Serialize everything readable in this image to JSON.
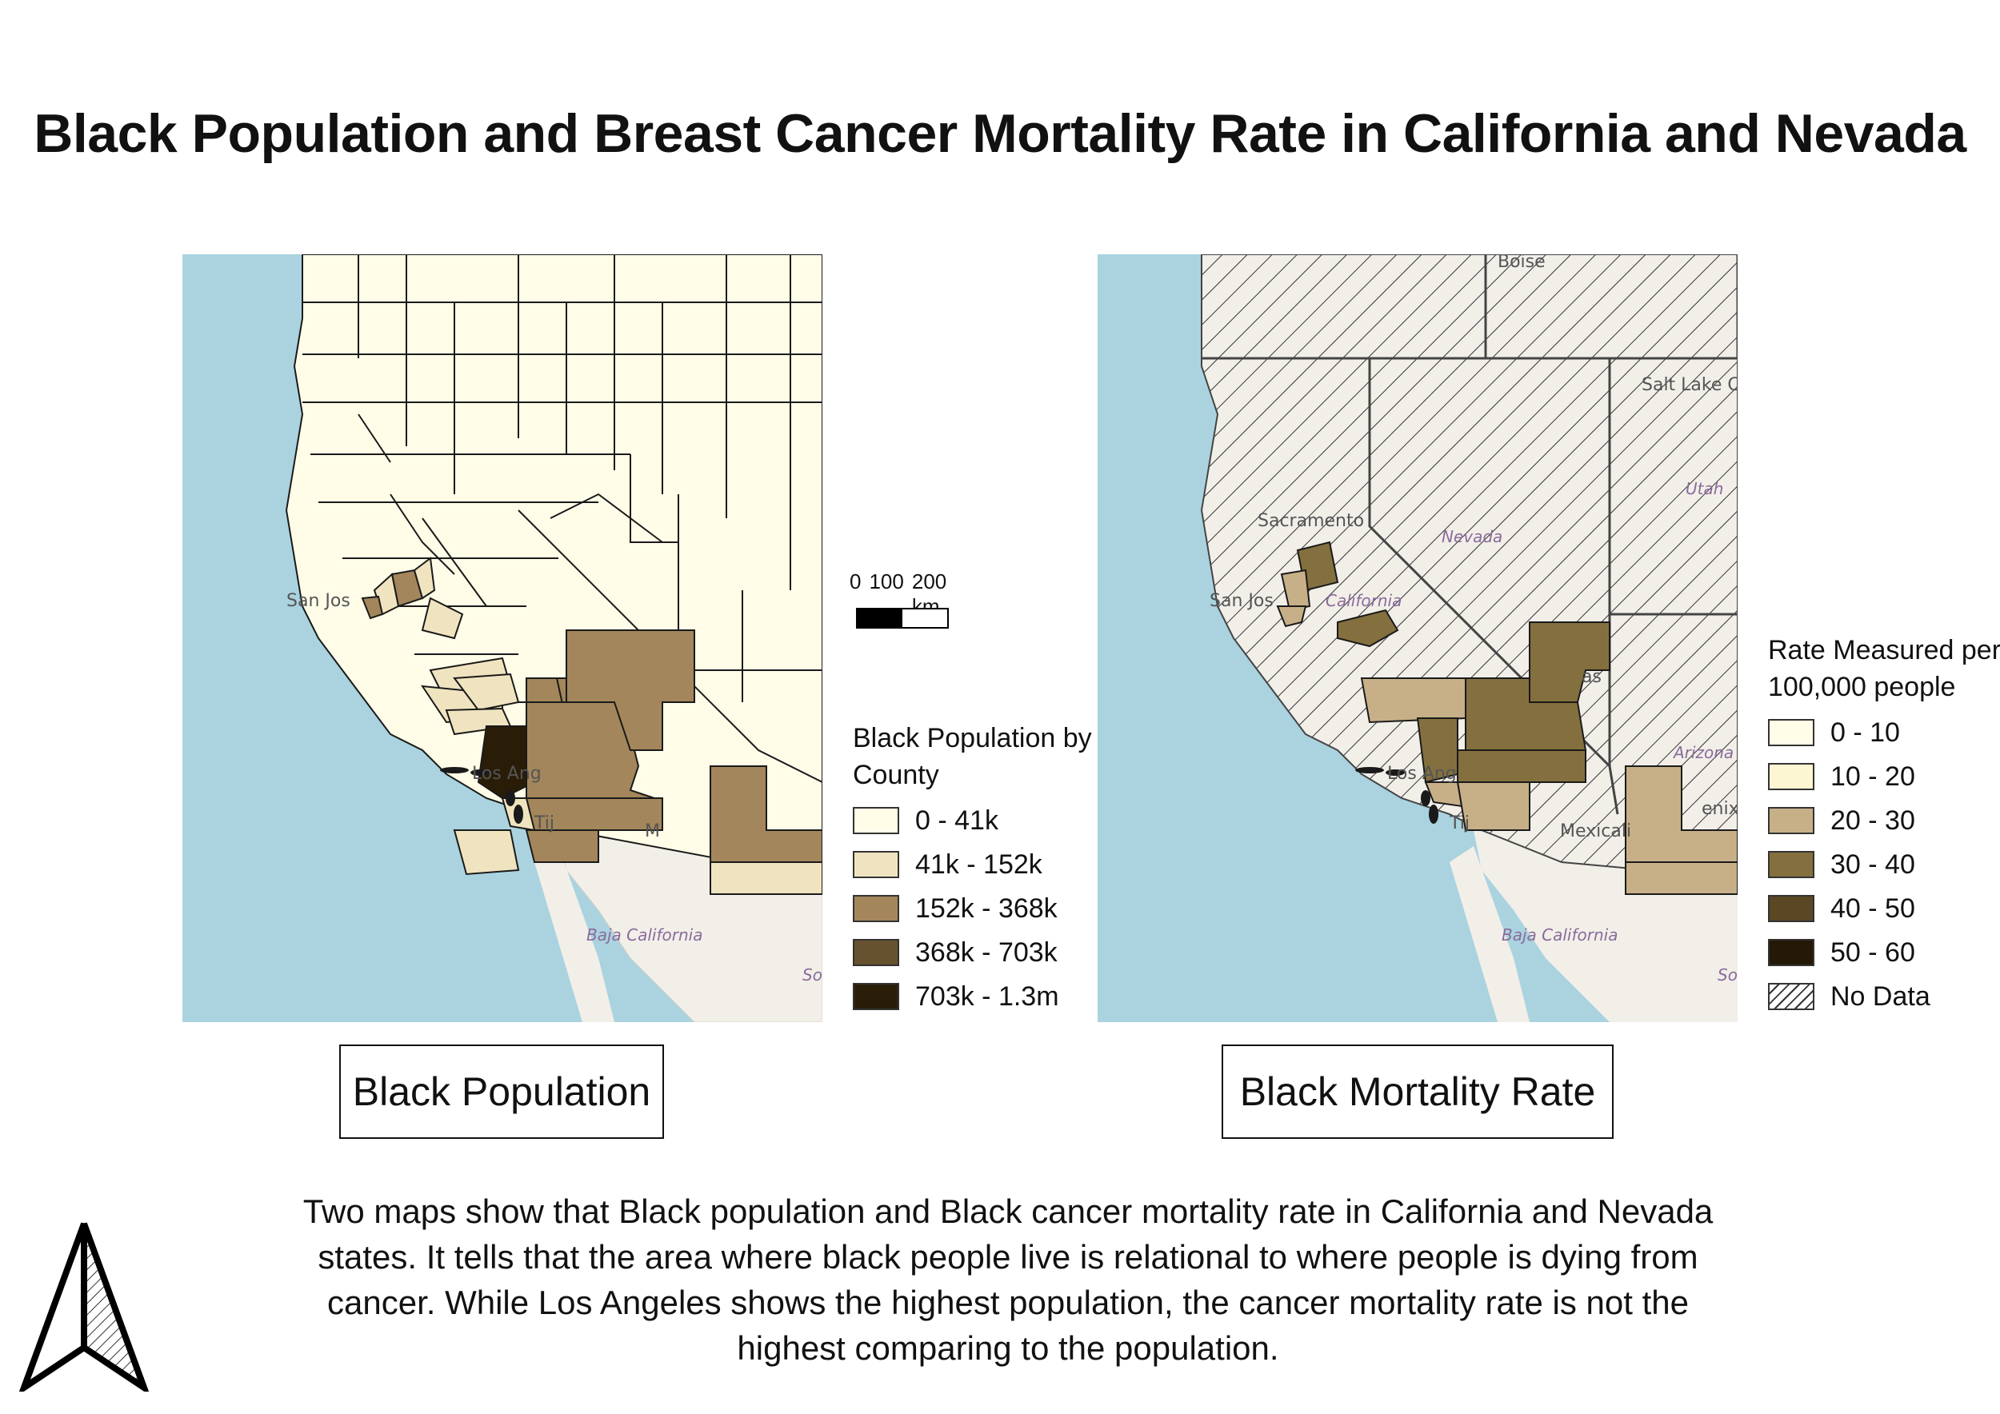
{
  "title": "Black Population and Breast Cancer Mortality Rate in California and Nevada",
  "colors": {
    "ocean": "#aad3df",
    "land": "#f2efe9",
    "county_border": "#1a1a1a",
    "no_data_hatch": "#333333"
  },
  "map_labels": {
    "san_jose": "San Jos",
    "los_angeles": "Los Ang",
    "tijuana": "Tij",
    "baja_california": "Baja California",
    "mexicali_short": "M",
    "mexicali": "Mexicali",
    "sonora_short": "So",
    "sacramento": "Sacramento",
    "california": "California",
    "nevada": "Nevada",
    "salt_lake_city": "Salt Lake City",
    "boise": "Boise",
    "utah": "Utah",
    "arizona": "Arizona",
    "phoenix": "enix",
    "las_vegas": "as"
  },
  "scale_bar": {
    "ticks": [
      "0",
      "100",
      "200 km"
    ]
  },
  "legend_population": {
    "title": "Black Population by County",
    "classes": [
      {
        "label": "0 - 41k",
        "color": "#fffde8"
      },
      {
        "label": "41k - 152k",
        "color": "#f0e4c0"
      },
      {
        "label": "152k - 368k",
        "color": "#a3865b"
      },
      {
        "label": "368k - 703k",
        "color": "#66522e"
      },
      {
        "label": "703k - 1.3m",
        "color": "#2a1d08"
      }
    ]
  },
  "legend_mortality": {
    "title": "Rate Measured per 100,000 people",
    "classes": [
      {
        "label": "0 - 10",
        "color": "#fffde8"
      },
      {
        "label": "10 - 20",
        "color": "#fdf6d2"
      },
      {
        "label": "20 - 30",
        "color": "#c7b088"
      },
      {
        "label": "30 - 40",
        "color": "#84703f"
      },
      {
        "label": "40 - 50",
        "color": "#5a4724"
      },
      {
        "label": "50 - 60",
        "color": "#241806"
      },
      {
        "label": "No Data",
        "color": "hatch"
      }
    ]
  },
  "captions": {
    "left": "Black Population",
    "right": "Black Mortality Rate"
  },
  "description": "Two maps show that Black population and Black cancer mortality rate in California and Nevada states. It tells that the area where black people live is relational to where people is dying from cancer. While Los Angeles shows the highest population, the cancer mortality rate is not the highest comparing to the population."
}
